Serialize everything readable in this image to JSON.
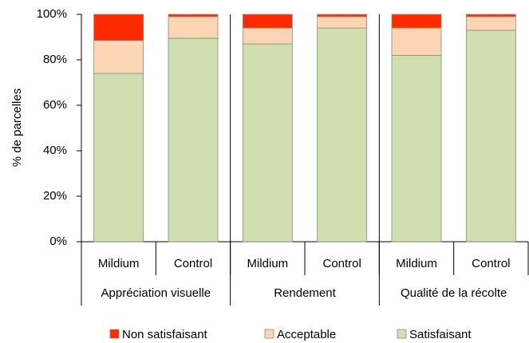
{
  "chart_data": {
    "type": "stacked_bar",
    "y_label": "% de parcelles",
    "categories": [
      "Mildium",
      "Control",
      "Mildium",
      "Control",
      "Mildium",
      "Control"
    ],
    "groups": [
      "Appréciation visuelle",
      "Rendement",
      "Qualité de la récolte"
    ],
    "series": [
      {
        "name": "Satisfaisant",
        "color": "#d0deb0",
        "values": [
          74,
          89.5,
          87,
          94,
          82,
          93
        ]
      },
      {
        "name": "Acceptable",
        "color": "#fcd5b5",
        "values": [
          14.5,
          9.5,
          7,
          5,
          12,
          6
        ]
      },
      {
        "name": "Non satisfaisant",
        "color": "#ff2a00",
        "values": [
          11.5,
          1,
          6,
          1,
          6,
          1
        ]
      }
    ],
    "ylim": [
      0,
      100
    ],
    "yticks": [
      {
        "value": 0,
        "label": "0%"
      },
      {
        "value": 20,
        "label": "20%"
      },
      {
        "value": 40,
        "label": "40%"
      },
      {
        "value": 60,
        "label": "60%"
      },
      {
        "value": 80,
        "label": "80%"
      },
      {
        "value": 100,
        "label": "100%"
      }
    ]
  }
}
